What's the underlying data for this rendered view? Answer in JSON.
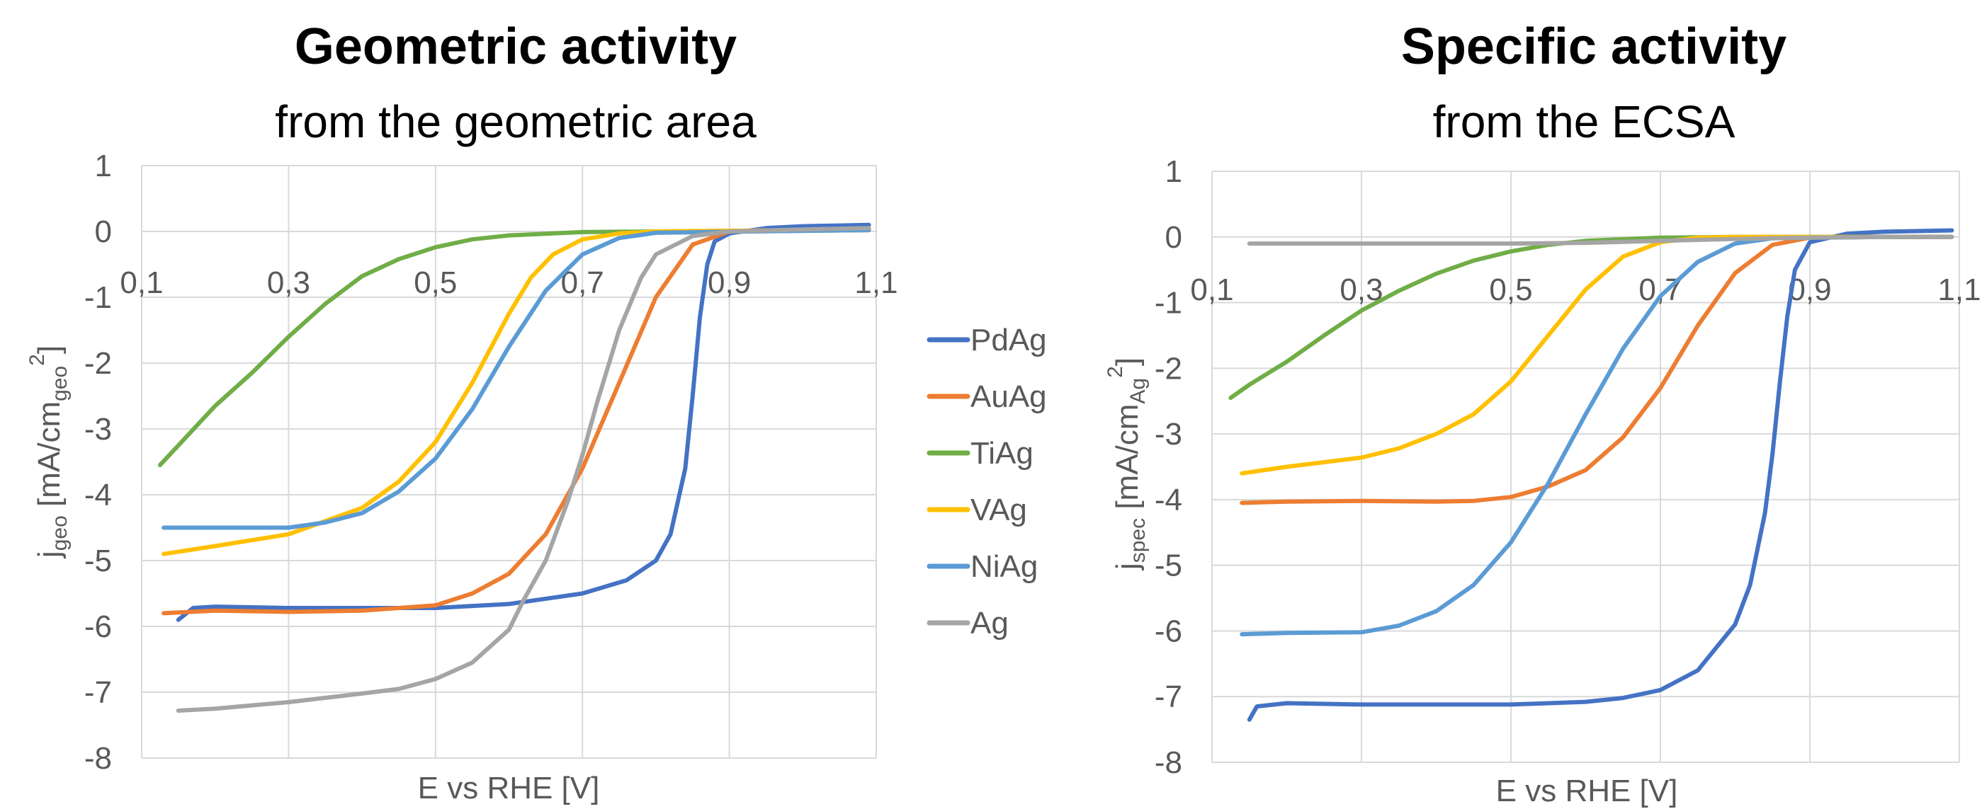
{
  "colors": {
    "PdAg": "#4472C4",
    "AuAg": "#ED7D31",
    "TiAg": "#70AD47",
    "VAg": "#FFC000",
    "NiAg": "#5B9BD5",
    "Ag": "#A5A5A5"
  },
  "legend": {
    "entries": [
      "PdAg",
      "AuAg",
      "TiAg",
      "VAg",
      "NiAg",
      "Ag"
    ]
  },
  "chart_data": [
    {
      "type": "line",
      "title": "Geometric activity",
      "subtitle": "from the geometric area",
      "xlabel": "E vs RHE [V]",
      "ylabel_main": "j",
      "ylabel_sub": "geo",
      "ylabel_tail": " [mA/cm",
      "ylabel_tail_sub": "geo",
      "ylabel_sup": "2",
      "ylabel_close": "]",
      "xlim": [
        0.1,
        1.1
      ],
      "ylim": [
        -8,
        1
      ],
      "xticks": [
        "0,1",
        "0,3",
        "0,5",
        "0,7",
        "0,9",
        "1,1"
      ],
      "yticks": [
        "1",
        "0",
        "-1",
        "-2",
        "-3",
        "-4",
        "-5",
        "-6",
        "-7",
        "-8"
      ],
      "grid": true,
      "series": [
        {
          "name": "PdAg",
          "x": [
            0.15,
            0.17,
            0.2,
            0.3,
            0.4,
            0.5,
            0.6,
            0.7,
            0.76,
            0.8,
            0.82,
            0.84,
            0.85,
            0.86,
            0.87,
            0.88,
            0.9,
            0.95,
            1.0,
            1.05,
            1.09
          ],
          "y": [
            -5.9,
            -5.72,
            -5.7,
            -5.72,
            -5.72,
            -5.72,
            -5.66,
            -5.5,
            -5.3,
            -5.0,
            -4.6,
            -3.6,
            -2.5,
            -1.3,
            -0.5,
            -0.15,
            -0.03,
            0.05,
            0.08,
            0.09,
            0.1
          ]
        },
        {
          "name": "AuAg",
          "x": [
            0.13,
            0.2,
            0.3,
            0.4,
            0.5,
            0.55,
            0.6,
            0.65,
            0.7,
            0.75,
            0.8,
            0.85,
            0.9,
            1.0,
            1.09
          ],
          "y": [
            -5.8,
            -5.76,
            -5.78,
            -5.76,
            -5.68,
            -5.5,
            -5.2,
            -4.6,
            -3.6,
            -2.3,
            -1.0,
            -0.2,
            0.0,
            0.02,
            0.03
          ]
        },
        {
          "name": "TiAg",
          "x": [
            0.125,
            0.15,
            0.2,
            0.25,
            0.3,
            0.35,
            0.4,
            0.45,
            0.5,
            0.55,
            0.6,
            0.7,
            0.8,
            1.0,
            1.09
          ],
          "y": [
            -3.55,
            -3.25,
            -2.65,
            -2.15,
            -1.6,
            -1.1,
            -0.68,
            -0.42,
            -0.24,
            -0.12,
            -0.06,
            -0.01,
            0.0,
            0.01,
            0.02
          ]
        },
        {
          "name": "VAg",
          "x": [
            0.13,
            0.2,
            0.3,
            0.4,
            0.45,
            0.5,
            0.55,
            0.6,
            0.63,
            0.66,
            0.7,
            0.75,
            0.8,
            1.0,
            1.09
          ],
          "y": [
            -4.9,
            -4.78,
            -4.6,
            -4.2,
            -3.8,
            -3.2,
            -2.3,
            -1.25,
            -0.7,
            -0.35,
            -0.12,
            -0.03,
            0.0,
            0.02,
            0.02
          ]
        },
        {
          "name": "NiAg",
          "x": [
            0.13,
            0.2,
            0.3,
            0.35,
            0.4,
            0.45,
            0.5,
            0.55,
            0.6,
            0.65,
            0.7,
            0.75,
            0.8,
            1.0,
            1.09
          ],
          "y": [
            -4.5,
            -4.5,
            -4.5,
            -4.42,
            -4.28,
            -3.95,
            -3.45,
            -2.7,
            -1.75,
            -0.9,
            -0.35,
            -0.1,
            -0.02,
            0.01,
            0.02
          ]
        },
        {
          "name": "Ag",
          "x": [
            0.15,
            0.2,
            0.3,
            0.4,
            0.45,
            0.5,
            0.55,
            0.6,
            0.62,
            0.65,
            0.68,
            0.7,
            0.72,
            0.75,
            0.78,
            0.8,
            0.85,
            0.9,
            1.0,
            1.09
          ],
          "y": [
            -7.28,
            -7.25,
            -7.15,
            -7.02,
            -6.95,
            -6.8,
            -6.55,
            -6.05,
            -5.6,
            -5.0,
            -4.1,
            -3.4,
            -2.6,
            -1.5,
            -0.7,
            -0.35,
            -0.07,
            0.0,
            0.03,
            0.05
          ]
        }
      ]
    },
    {
      "type": "line",
      "title": "Specific activity",
      "subtitle": "from the ECSA",
      "xlabel": "E vs RHE [V]",
      "ylabel_main": "j",
      "ylabel_sub": "spec",
      "ylabel_tail": " [mA/cm",
      "ylabel_tail_sub": "Ag",
      "ylabel_sup": "2",
      "ylabel_close": "]",
      "xlim": [
        0.1,
        1.1
      ],
      "ylim": [
        -8,
        1
      ],
      "xticks": [
        "0,1",
        "0,3",
        "0,5",
        "0,7",
        "0,9",
        "1,1"
      ],
      "yticks": [
        "1",
        "0",
        "-1",
        "-2",
        "-3",
        "-4",
        "-5",
        "-6",
        "-7",
        "-8"
      ],
      "grid": true,
      "series": [
        {
          "name": "PdAg",
          "x": [
            0.15,
            0.16,
            0.2,
            0.3,
            0.4,
            0.5,
            0.6,
            0.65,
            0.7,
            0.75,
            0.8,
            0.82,
            0.84,
            0.85,
            0.86,
            0.87,
            0.88,
            0.9,
            0.95,
            1.0,
            1.09
          ],
          "y": [
            -7.35,
            -7.15,
            -7.1,
            -7.12,
            -7.12,
            -7.12,
            -7.08,
            -7.02,
            -6.9,
            -6.6,
            -5.9,
            -5.3,
            -4.2,
            -3.3,
            -2.2,
            -1.2,
            -0.5,
            -0.08,
            0.05,
            0.08,
            0.1
          ]
        },
        {
          "name": "AuAg",
          "x": [
            0.14,
            0.2,
            0.3,
            0.4,
            0.45,
            0.5,
            0.55,
            0.6,
            0.65,
            0.7,
            0.75,
            0.8,
            0.85,
            0.9,
            1.0,
            1.09
          ],
          "y": [
            -4.05,
            -4.03,
            -4.02,
            -4.03,
            -4.02,
            -3.96,
            -3.8,
            -3.55,
            -3.05,
            -2.3,
            -1.35,
            -0.55,
            -0.12,
            -0.01,
            0.0,
            0.0
          ]
        },
        {
          "name": "TiAg",
          "x": [
            0.125,
            0.15,
            0.2,
            0.25,
            0.3,
            0.35,
            0.4,
            0.45,
            0.5,
            0.55,
            0.6,
            0.7,
            0.8,
            1.0,
            1.09
          ],
          "y": [
            -2.45,
            -2.25,
            -1.9,
            -1.5,
            -1.12,
            -0.82,
            -0.56,
            -0.36,
            -0.22,
            -0.12,
            -0.06,
            -0.01,
            0.0,
            0.0,
            0.0
          ]
        },
        {
          "name": "VAg",
          "x": [
            0.14,
            0.2,
            0.3,
            0.35,
            0.4,
            0.45,
            0.5,
            0.55,
            0.6,
            0.65,
            0.7,
            0.75,
            0.8,
            1.0,
            1.09
          ],
          "y": [
            -3.6,
            -3.5,
            -3.36,
            -3.22,
            -3.0,
            -2.7,
            -2.2,
            -1.5,
            -0.8,
            -0.3,
            -0.08,
            -0.01,
            0.0,
            0.0,
            0.0
          ]
        },
        {
          "name": "NiAg",
          "x": [
            0.14,
            0.2,
            0.3,
            0.35,
            0.4,
            0.45,
            0.5,
            0.55,
            0.6,
            0.65,
            0.7,
            0.75,
            0.8,
            0.85,
            1.0,
            1.09
          ],
          "y": [
            -6.05,
            -6.03,
            -6.02,
            -5.92,
            -5.7,
            -5.3,
            -4.65,
            -3.75,
            -2.7,
            -1.7,
            -0.9,
            -0.38,
            -0.1,
            -0.02,
            0.0,
            0.0
          ]
        },
        {
          "name": "Ag",
          "x": [
            0.15,
            0.3,
            0.5,
            0.6,
            0.7,
            0.8,
            0.9,
            1.0,
            1.09
          ],
          "y": [
            -0.1,
            -0.1,
            -0.1,
            -0.09,
            -0.06,
            -0.03,
            -0.01,
            0.0,
            0.0
          ]
        }
      ]
    }
  ]
}
